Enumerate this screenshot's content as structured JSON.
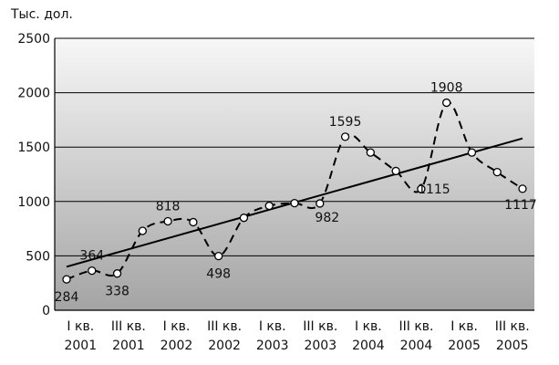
{
  "chart_data": {
    "type": "line",
    "unit_label": "Тыс. дол.",
    "ylim": [
      0,
      2500
    ],
    "y_ticks": [
      "0",
      "500",
      "1000",
      "1500",
      "2000",
      "2500"
    ],
    "grid": true,
    "x_labels": [
      [
        "I кв.",
        "2001"
      ],
      [
        "III кв.",
        "2001"
      ],
      [
        "I кв.",
        "2002"
      ],
      [
        "III кв.",
        "2002"
      ],
      [
        "I кв.",
        "2003"
      ],
      [
        "III кв.",
        "2003"
      ],
      [
        "I кв.",
        "2004"
      ],
      [
        "III кв.",
        "2004"
      ],
      [
        "I кв.",
        "2005"
      ],
      [
        "III кв.",
        "2005"
      ]
    ],
    "series": [
      {
        "style": "dashed-with-markers",
        "values": [
          284,
          364,
          338,
          730,
          818,
          810,
          498,
          850,
          960,
          985,
          982,
          1595,
          1450,
          1280,
          1115,
          1908,
          1450,
          1270,
          1117
        ],
        "labeled": [
          {
            "index": 0,
            "text": "284",
            "pos": "below"
          },
          {
            "index": 1,
            "text": "364",
            "pos": "above"
          },
          {
            "index": 2,
            "text": "338",
            "pos": "below"
          },
          {
            "index": 4,
            "text": "818",
            "pos": "above"
          },
          {
            "index": 6,
            "text": "498",
            "pos": "below"
          },
          {
            "index": 10,
            "text": "982",
            "pos": "below-right"
          },
          {
            "index": 11,
            "text": "1595",
            "pos": "above"
          },
          {
            "index": 14,
            "text": "1115",
            "pos": "right"
          },
          {
            "index": 15,
            "text": "1908",
            "pos": "above"
          },
          {
            "index": 18,
            "text": "1117",
            "pos": "below-left"
          }
        ]
      },
      {
        "style": "solid-trend",
        "values": [
          400,
          1580
        ]
      }
    ]
  }
}
